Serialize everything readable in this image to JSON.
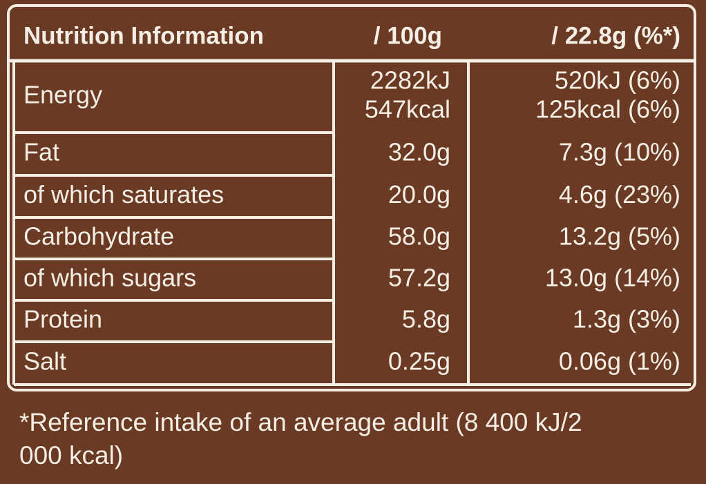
{
  "header": {
    "columns": [
      "Nutrition Information",
      "/ 100g",
      "/ 22.8g (%*)"
    ]
  },
  "rows": [
    {
      "label": "Energy",
      "per_100g": [
        "2282kJ",
        "547kcal"
      ],
      "per_serving": [
        "520kJ (6%)",
        "125kcal (6%)"
      ]
    },
    {
      "label": "Fat",
      "per_100g": [
        "32.0g"
      ],
      "per_serving": [
        "7.3g (10%)"
      ]
    },
    {
      "label": "of which saturates",
      "per_100g": [
        "20.0g"
      ],
      "per_serving": [
        "4.6g (23%)"
      ]
    },
    {
      "label": "Carbohydrate",
      "per_100g": [
        "58.0g"
      ],
      "per_serving": [
        "13.2g (5%)"
      ]
    },
    {
      "label": "of which sugars",
      "per_100g": [
        "57.2g"
      ],
      "per_serving": [
        "13.0g (14%)"
      ]
    },
    {
      "label": "Protein",
      "per_100g": [
        "5.8g"
      ],
      "per_serving": [
        "1.3g (3%)"
      ]
    },
    {
      "label": "Salt",
      "per_100g": [
        "0.25g"
      ],
      "per_serving": [
        "0.06g (1%)"
      ]
    }
  ],
  "footnote": "*Reference intake of an average adult (8 400 kJ/2 000 kcal)"
}
